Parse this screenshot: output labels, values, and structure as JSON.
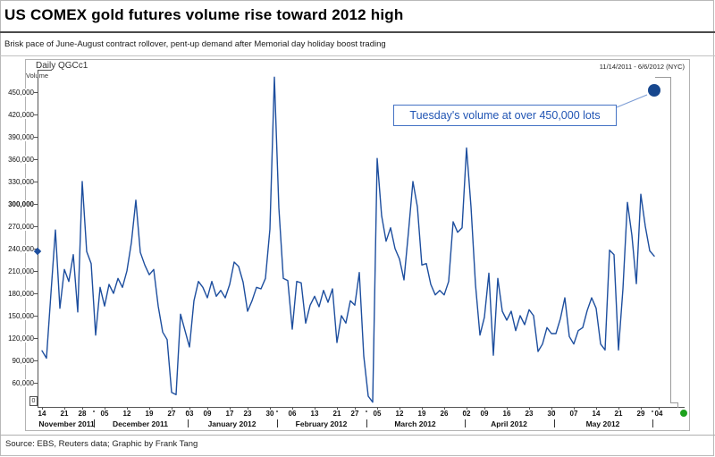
{
  "title": "US COMEX gold futures volume rise toward 2012 high",
  "subtitle": "Brisk pace of June-August contract rollover, pent-up demand after Memorial day holiday boost trading",
  "source_line": "Source: EBS, Reuters data; Graphic by Frank Tang",
  "chart_header": {
    "instrument": "Daily QGCc1",
    "axis_name": "Volume",
    "period": "11/14/2011 - 6/6/2012 (NYC)",
    "scale_marker": "0"
  },
  "annotation": {
    "text": "Tuesday's volume at over 450,000 lots"
  },
  "colors": {
    "line": "#1d4e9e",
    "highlight_dot": "#17478e",
    "annotation_text": "#2155b4",
    "annotation_border": "#4472c4",
    "callout": "#7a9bd4",
    "green_dot": "#1da11d",
    "axis": "#555555",
    "frame": "#b3b3b3"
  },
  "chart_data": {
    "type": "line",
    "title": "Daily QGCc1 Volume",
    "xlabel": "",
    "ylabel": "Volume",
    "ylim": [
      0,
      480000
    ],
    "grid": false,
    "legend": "none",
    "y_ticks": [
      450000,
      420000,
      390000,
      360000,
      330000,
      300000,
      270000,
      240000,
      210000,
      180000,
      150000,
      120000,
      90000,
      60000
    ],
    "emphasized_y_tick": 300000,
    "last_value_axis_marker": 236000,
    "dates": [
      "11/14",
      "11/15",
      "11/16",
      "11/17",
      "11/18",
      "11/21",
      "11/22",
      "11/23",
      "11/25",
      "11/28",
      "11/29",
      "11/30",
      "12/1",
      "12/2",
      "12/5",
      "12/6",
      "12/7",
      "12/8",
      "12/9",
      "12/12",
      "12/13",
      "12/14",
      "12/15",
      "12/16",
      "12/19",
      "12/20",
      "12/21",
      "12/22",
      "12/23",
      "12/27",
      "12/28",
      "12/29",
      "12/30",
      "1/3",
      "1/4",
      "1/5",
      "1/6",
      "1/9",
      "1/10",
      "1/11",
      "1/12",
      "1/13",
      "1/17",
      "1/18",
      "1/19",
      "1/20",
      "1/23",
      "1/24",
      "1/25",
      "1/26",
      "1/27",
      "1/30",
      "1/31",
      "2/1",
      "2/2",
      "2/3",
      "2/6",
      "2/7",
      "2/8",
      "2/9",
      "2/10",
      "2/13",
      "2/14",
      "2/15",
      "2/16",
      "2/17",
      "2/21",
      "2/22",
      "2/23",
      "2/24",
      "2/27",
      "2/28",
      "2/29",
      "3/1",
      "3/2",
      "3/5",
      "3/6",
      "3/7",
      "3/8",
      "3/9",
      "3/12",
      "3/13",
      "3/14",
      "3/15",
      "3/16",
      "3/19",
      "3/20",
      "3/21",
      "3/22",
      "3/23",
      "3/26",
      "3/27",
      "3/28",
      "3/29",
      "3/30",
      "4/2",
      "4/3",
      "4/4",
      "4/5",
      "4/9",
      "4/10",
      "4/11",
      "4/12",
      "4/13",
      "4/16",
      "4/17",
      "4/18",
      "4/19",
      "4/20",
      "4/23",
      "4/24",
      "4/25",
      "4/26",
      "4/27",
      "4/30",
      "5/1",
      "5/2",
      "5/3",
      "5/4",
      "5/7",
      "5/8",
      "5/9",
      "5/10",
      "5/11",
      "5/14",
      "5/15",
      "5/16",
      "5/17",
      "5/18",
      "5/21",
      "5/22",
      "5/23",
      "5/24",
      "5/25",
      "5/29",
      "5/30",
      "5/31",
      "6/1"
    ],
    "values": [
      103000,
      93000,
      180000,
      265000,
      160000,
      212000,
      196000,
      232000,
      155000,
      330000,
      236000,
      220000,
      124000,
      188000,
      163000,
      192000,
      180000,
      200000,
      188000,
      210000,
      248000,
      305000,
      235000,
      218000,
      205000,
      212000,
      163000,
      128000,
      118000,
      47000,
      44000,
      152000,
      130000,
      108000,
      170000,
      196000,
      188000,
      174000,
      196000,
      176000,
      184000,
      174000,
      192000,
      222000,
      216000,
      195000,
      156000,
      170000,
      188000,
      186000,
      200000,
      266000,
      470000,
      295000,
      200000,
      197000,
      132000,
      196000,
      194000,
      140000,
      164000,
      176000,
      162000,
      184000,
      168000,
      186000,
      114000,
      150000,
      140000,
      170000,
      164000,
      208000,
      96000,
      42000,
      34000,
      361000,
      284000,
      250000,
      268000,
      240000,
      226000,
      198000,
      262000,
      330000,
      296000,
      218000,
      220000,
      192000,
      178000,
      184000,
      178000,
      196000,
      276000,
      262000,
      268000,
      375000,
      296000,
      192000,
      124000,
      148000,
      207000,
      97000,
      200000,
      156000,
      144000,
      156000,
      130000,
      150000,
      138000,
      158000,
      150000,
      102000,
      112000,
      134000,
      126000,
      126000,
      146000,
      174000,
      122000,
      112000,
      130000,
      134000,
      157000,
      174000,
      160000,
      112000,
      104000,
      238000,
      232000,
      104000,
      186000,
      302000,
      258000,
      193000,
      313000,
      270000,
      237000,
      230000
    ],
    "highlight_point": {
      "date": "6/5",
      "label": "Tuesday",
      "value": 452000
    },
    "x_ticks": [
      {
        "label": "14",
        "i": 0
      },
      {
        "label": "21",
        "i": 5
      },
      {
        "label": "28",
        "i": 9
      },
      {
        "label": "05",
        "i": 14
      },
      {
        "label": "12",
        "i": 19
      },
      {
        "label": "19",
        "i": 24
      },
      {
        "label": "27",
        "i": 29
      },
      {
        "label": "03",
        "i": 33
      },
      {
        "label": "09",
        "i": 37
      },
      {
        "label": "17",
        "i": 42
      },
      {
        "label": "23",
        "i": 46
      },
      {
        "label": "30",
        "i": 51
      },
      {
        "label": "06",
        "i": 56
      },
      {
        "label": "13",
        "i": 61
      },
      {
        "label": "21",
        "i": 66
      },
      {
        "label": "27",
        "i": 70
      },
      {
        "label": "05",
        "i": 75
      },
      {
        "label": "12",
        "i": 80
      },
      {
        "label": "19",
        "i": 85
      },
      {
        "label": "26",
        "i": 90
      },
      {
        "label": "02",
        "i": 95
      },
      {
        "label": "09",
        "i": 99
      },
      {
        "label": "16",
        "i": 104
      },
      {
        "label": "23",
        "i": 109
      },
      {
        "label": "30",
        "i": 114
      },
      {
        "label": "07",
        "i": 119
      },
      {
        "label": "14",
        "i": 124
      },
      {
        "label": "21",
        "i": 129
      },
      {
        "label": "29",
        "i": 134
      },
      {
        "label": "04",
        "i": 138
      }
    ],
    "months": [
      {
        "label": "November 2011",
        "s": 0,
        "e": 11
      },
      {
        "label": "December 2011",
        "s": 12,
        "e": 32
      },
      {
        "label": "January 2012",
        "s": 33,
        "e": 52
      },
      {
        "label": "February 2012",
        "s": 53,
        "e": 72
      },
      {
        "label": "March 2012",
        "s": 73,
        "e": 94
      },
      {
        "label": "April 2012",
        "s": 95,
        "e": 114
      },
      {
        "label": "May 2012",
        "s": 115,
        "e": 136
      }
    ]
  }
}
